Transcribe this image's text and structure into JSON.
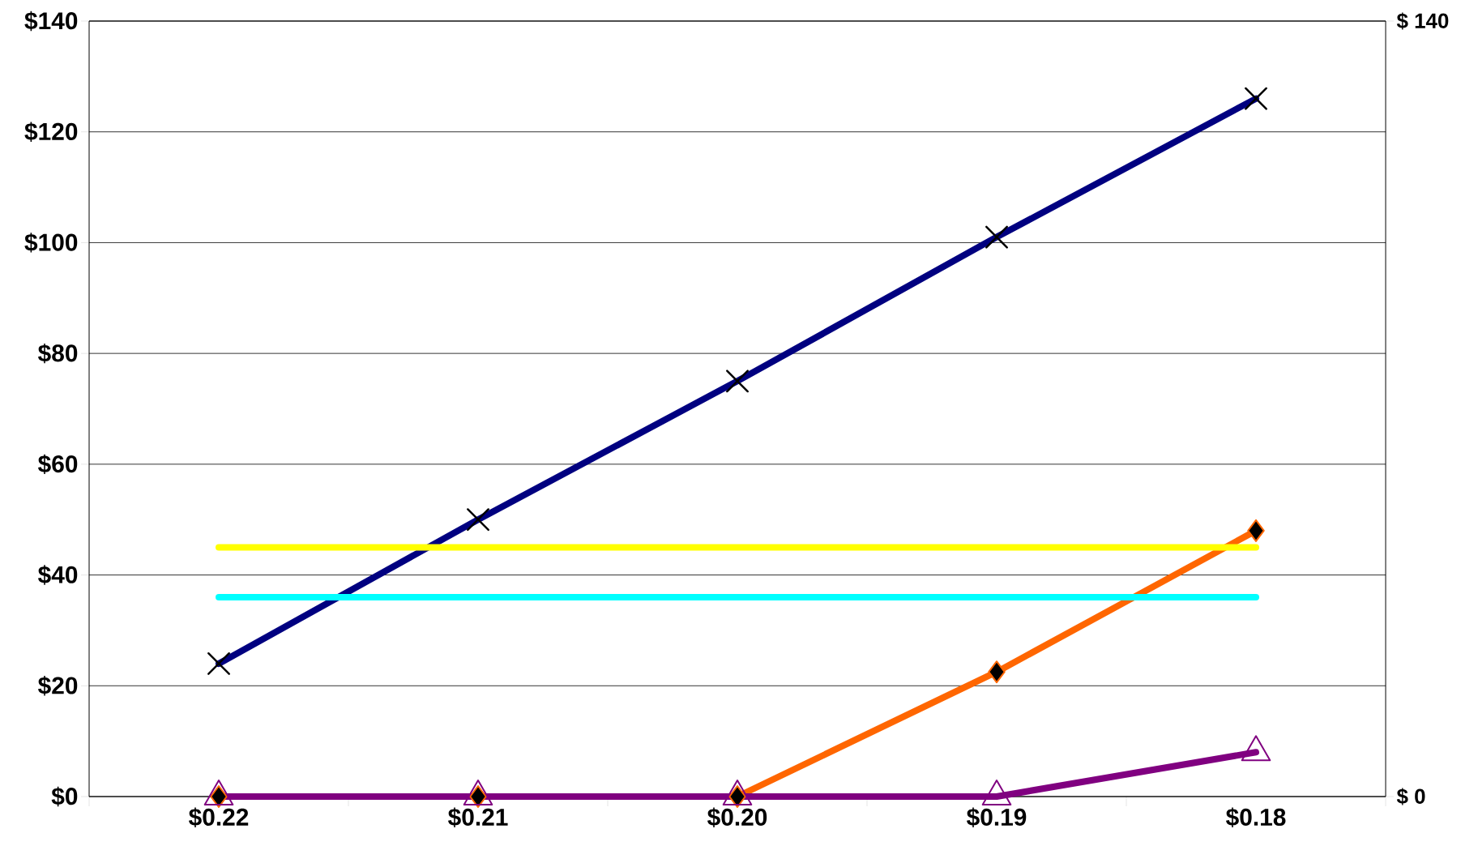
{
  "chart_data": {
    "type": "line",
    "categories": [
      "$0.22",
      "$0.21",
      "$0.20",
      "$0.19",
      "$0.18"
    ],
    "series": [
      {
        "color": "#000080",
        "marker": "cross",
        "values": [
          24,
          50,
          75,
          101,
          126
        ]
      },
      {
        "color": "#ff6600",
        "marker": "diamond",
        "values": [
          0,
          0,
          0,
          22.5,
          48
        ]
      },
      {
        "color": "#800080",
        "marker": "triangle",
        "values": [
          0,
          0,
          0,
          0,
          8
        ]
      },
      {
        "color": "#ffff00",
        "marker": "none",
        "values": [
          45,
          45,
          45,
          45,
          45
        ]
      },
      {
        "color": "#00ffff",
        "marker": "none",
        "values": [
          36,
          36,
          36,
          36,
          36
        ]
      }
    ],
    "ylim": [
      0,
      140
    ],
    "yticks": [
      {
        "value": 0,
        "label": "$0"
      },
      {
        "value": 20,
        "label": "$20"
      },
      {
        "value": 40,
        "label": "$40"
      },
      {
        "value": 60,
        "label": "$60"
      },
      {
        "value": 80,
        "label": "$80"
      },
      {
        "value": 100,
        "label": "$100"
      },
      {
        "value": 120,
        "label": "$120"
      },
      {
        "value": 140,
        "label": "$140"
      }
    ],
    "y2lim": [
      0,
      140
    ],
    "y2ticks": [
      {
        "value": 0,
        "label": "$ 0"
      },
      {
        "value": 140,
        "label": "$ 140"
      }
    ],
    "grid": "y",
    "line_style": "solid"
  }
}
